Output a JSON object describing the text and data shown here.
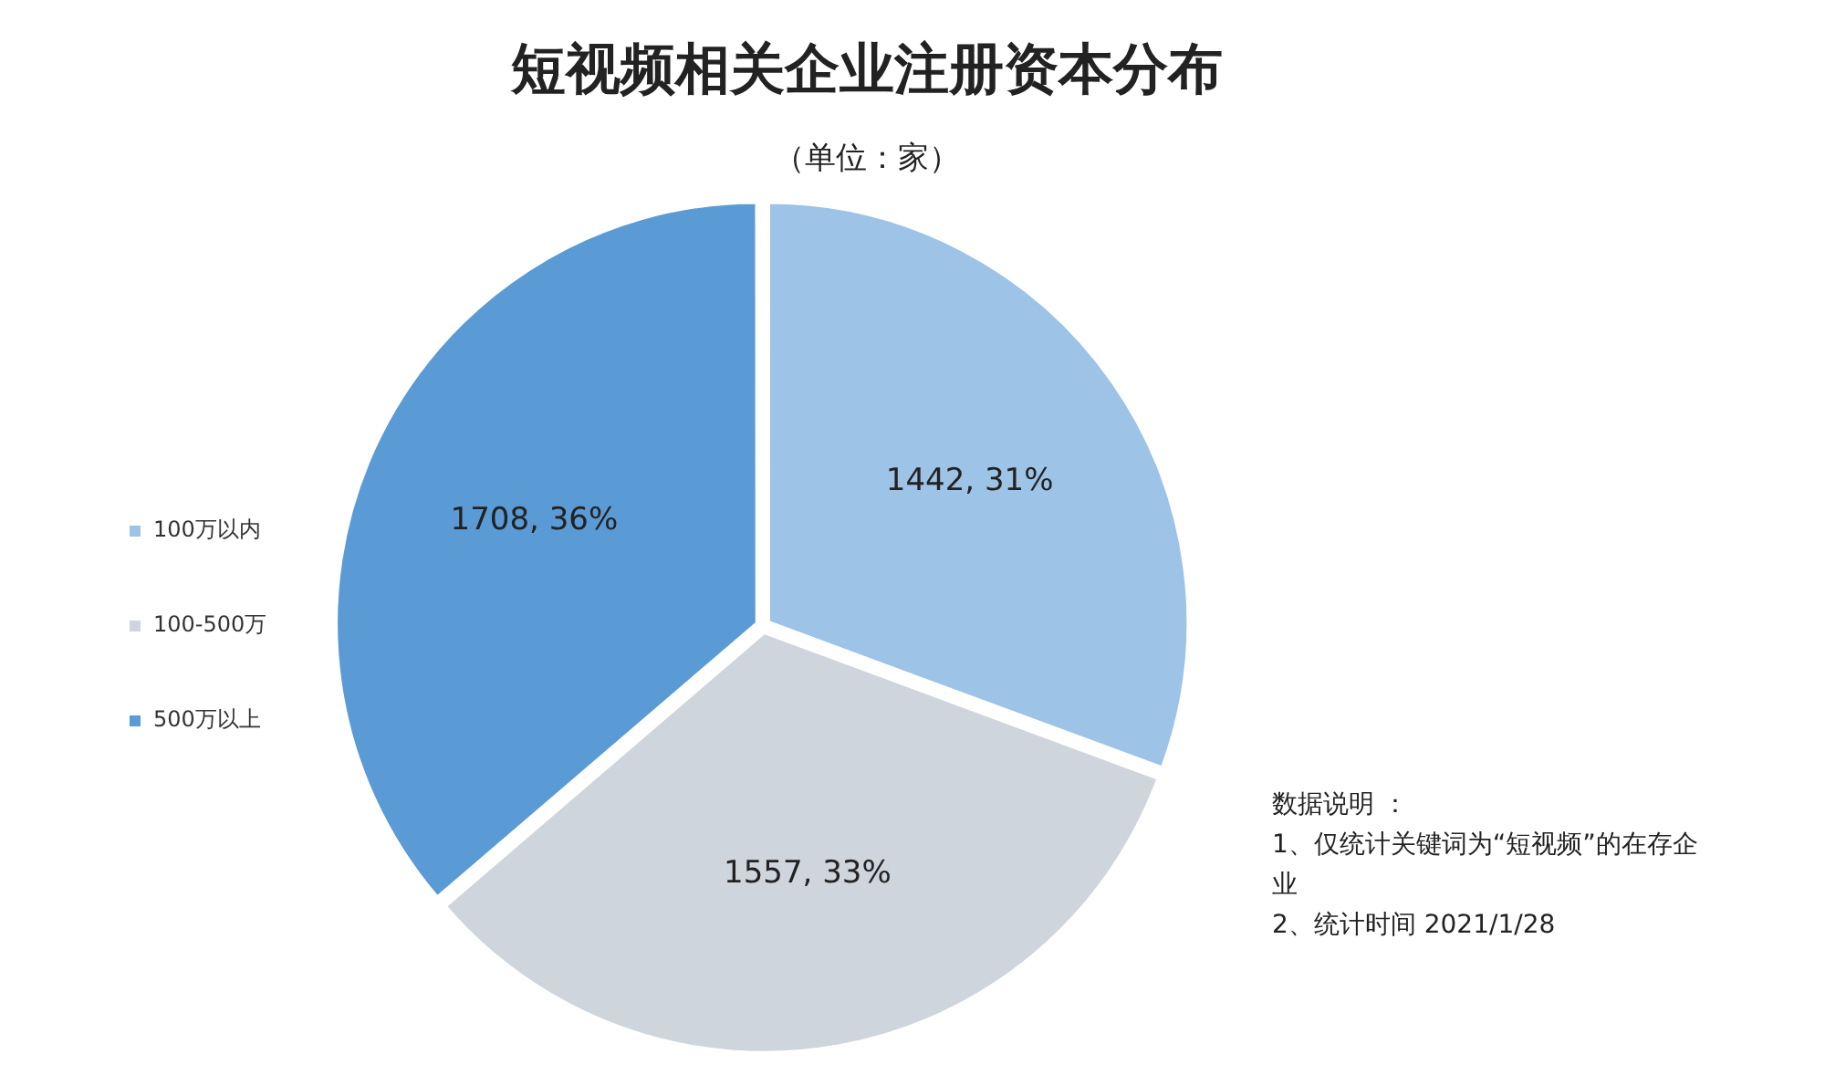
{
  "chart_data": {
    "type": "pie",
    "title": "短视频相关企业注册资本分布",
    "subtitle": "（单位：家）",
    "categories": [
      "100万以内",
      "100-500万",
      "500万以上"
    ],
    "values": [
      1442,
      1557,
      1708
    ],
    "colors": [
      "#9dc3e6",
      "#cfd5dc",
      "#5b9bd5"
    ],
    "value_labels": [
      "1442, 31%",
      "1557, 33%",
      "1708, 36%"
    ],
    "legend": "left",
    "annotations": [
      "数据说明 ：",
      "1、仅统计关键词为“短视频”的在存企业",
      "2、统计时间 2021/1/28"
    ]
  }
}
